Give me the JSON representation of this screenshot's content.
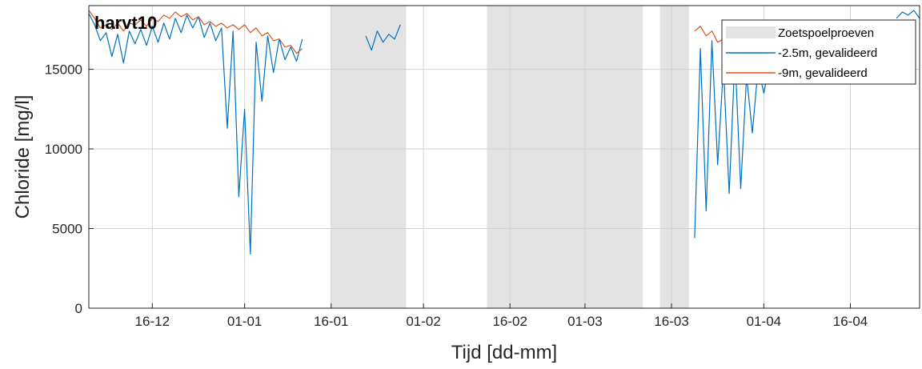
{
  "chart_data": {
    "type": "line",
    "title": "harvt10",
    "xlabel": "Tijd [dd-mm]",
    "ylabel": "Chloride [mg/l]",
    "ylim": [
      0,
      19000
    ],
    "xlim": [
      "2017-12-05",
      "2018-04-28"
    ],
    "grid": true,
    "legend_placement": "top-right",
    "x_ticks": [
      {
        "date": "2017-12-16",
        "label": "16-12"
      },
      {
        "date": "2018-01-01",
        "label": "01-01"
      },
      {
        "date": "2018-01-16",
        "label": "16-01"
      },
      {
        "date": "2018-02-01",
        "label": "01-02"
      },
      {
        "date": "2018-02-16",
        "label": "16-02"
      },
      {
        "date": "2018-03-01",
        "label": "01-03"
      },
      {
        "date": "2018-03-16",
        "label": "16-03"
      },
      {
        "date": "2018-04-01",
        "label": "01-04"
      },
      {
        "date": "2018-04-16",
        "label": "16-04"
      }
    ],
    "y_ticks": [
      {
        "value": 0,
        "label": "0"
      },
      {
        "value": 5000,
        "label": "5000"
      },
      {
        "value": 10000,
        "label": "10000"
      },
      {
        "value": 15000,
        "label": "15000"
      }
    ],
    "shaded_periods": {
      "name": "Zoetspoelproeven",
      "color": "#e3e3e3",
      "ranges": [
        [
          "2018-01-16",
          "2018-01-29"
        ],
        [
          "2018-02-12",
          "2018-03-11"
        ],
        [
          "2018-03-14",
          "2018-03-19"
        ]
      ]
    },
    "series": [
      {
        "name": "-2.5m, gevalideerd",
        "color": "#0072BD",
        "segments": [
          [
            [
              "2017-12-05",
              18500
            ],
            [
              "2017-12-06",
              17800
            ],
            [
              "2017-12-07",
              16800
            ],
            [
              "2017-12-08",
              17300
            ],
            [
              "2017-12-09",
              15800
            ],
            [
              "2017-12-10",
              17200
            ],
            [
              "2017-12-11",
              15400
            ],
            [
              "2017-12-12",
              17400
            ],
            [
              "2017-12-13",
              16600
            ],
            [
              "2017-12-14",
              17500
            ],
            [
              "2017-12-15",
              16500
            ],
            [
              "2017-12-16",
              17700
            ],
            [
              "2017-12-17",
              16700
            ],
            [
              "2017-12-18",
              17900
            ],
            [
              "2017-12-19",
              16900
            ],
            [
              "2017-12-20",
              18200
            ],
            [
              "2017-12-21",
              17300
            ],
            [
              "2017-12-22",
              18400
            ],
            [
              "2017-12-23",
              17600
            ],
            [
              "2017-12-24",
              18300
            ],
            [
              "2017-12-25",
              17000
            ],
            [
              "2017-12-26",
              17900
            ],
            [
              "2017-12-27",
              16800
            ],
            [
              "2017-12-28",
              17600
            ],
            [
              "2017-12-29",
              11300
            ],
            [
              "2017-12-30",
              17400
            ],
            [
              "2017-12-31",
              7000
            ],
            [
              "2018-01-01",
              12500
            ],
            [
              "2018-01-02",
              3400
            ],
            [
              "2018-01-03",
              16700
            ],
            [
              "2018-01-04",
              13000
            ],
            [
              "2018-01-05",
              17100
            ],
            [
              "2018-01-06",
              14800
            ],
            [
              "2018-01-07",
              16900
            ],
            [
              "2018-01-08",
              15600
            ],
            [
              "2018-01-09",
              16400
            ],
            [
              "2018-01-10",
              15500
            ],
            [
              "2018-01-11",
              16900
            ]
          ],
          [
            [
              "2018-01-22",
              17100
            ],
            [
              "2018-01-23",
              16200
            ],
            [
              "2018-01-24",
              17400
            ],
            [
              "2018-01-25",
              16700
            ],
            [
              "2018-01-26",
              17200
            ],
            [
              "2018-01-27",
              16900
            ],
            [
              "2018-01-28",
              17800
            ]
          ],
          [
            [
              "2018-03-20",
              4400
            ],
            [
              "2018-03-21",
              16300
            ],
            [
              "2018-03-22",
              6100
            ],
            [
              "2018-03-23",
              16800
            ],
            [
              "2018-03-24",
              9000
            ],
            [
              "2018-03-25",
              15200
            ],
            [
              "2018-03-26",
              7200
            ],
            [
              "2018-03-27",
              15900
            ],
            [
              "2018-03-28",
              7500
            ],
            [
              "2018-03-29",
              14600
            ],
            [
              "2018-03-30",
              11000
            ],
            [
              "2018-03-31",
              15100
            ],
            [
              "2018-04-01",
              13500
            ],
            [
              "2018-04-02",
              15400
            ],
            [
              "2018-04-03",
              14400
            ]
          ],
          [
            [
              "2018-04-24",
              18200
            ],
            [
              "2018-04-25",
              18600
            ],
            [
              "2018-04-26",
              18400
            ],
            [
              "2018-04-27",
              18700
            ],
            [
              "2018-04-28",
              18200
            ]
          ]
        ]
      },
      {
        "name": "-9m, gevalideerd",
        "color": "#D95319",
        "segments": [
          [
            [
              "2017-12-05",
              18700
            ],
            [
              "2017-12-06",
              18200
            ],
            [
              "2017-12-07",
              17600
            ],
            [
              "2017-12-08",
              17800
            ],
            [
              "2017-12-09",
              17500
            ],
            [
              "2017-12-10",
              17900
            ],
            [
              "2017-12-11",
              17400
            ],
            [
              "2017-12-12",
              17900
            ],
            [
              "2017-12-13",
              17800
            ],
            [
              "2017-12-14",
              18100
            ],
            [
              "2017-12-15",
              17700
            ],
            [
              "2017-12-16",
              18200
            ],
            [
              "2017-12-17",
              18000
            ],
            [
              "2017-12-18",
              18400
            ],
            [
              "2017-12-19",
              18200
            ],
            [
              "2017-12-20",
              18600
            ],
            [
              "2017-12-21",
              18300
            ],
            [
              "2017-12-22",
              18500
            ],
            [
              "2017-12-23",
              18100
            ],
            [
              "2017-12-24",
              18300
            ],
            [
              "2017-12-25",
              17800
            ],
            [
              "2017-12-26",
              18000
            ],
            [
              "2017-12-27",
              17700
            ],
            [
              "2017-12-28",
              17900
            ],
            [
              "2017-12-29",
              17600
            ],
            [
              "2017-12-30",
              17800
            ],
            [
              "2017-12-31",
              17500
            ],
            [
              "2018-01-01",
              17800
            ],
            [
              "2018-01-02",
              17300
            ],
            [
              "2018-01-03",
              17600
            ],
            [
              "2018-01-04",
              17100
            ],
            [
              "2018-01-05",
              17300
            ],
            [
              "2018-01-06",
              16800
            ],
            [
              "2018-01-07",
              16900
            ],
            [
              "2018-01-08",
              16400
            ],
            [
              "2018-01-09",
              16500
            ],
            [
              "2018-01-10",
              16000
            ],
            [
              "2018-01-11",
              16300
            ]
          ],
          [
            [
              "2018-03-20",
              17400
            ],
            [
              "2018-03-21",
              17700
            ],
            [
              "2018-03-22",
              17100
            ],
            [
              "2018-03-23",
              17400
            ],
            [
              "2018-03-24",
              16700
            ],
            [
              "2018-03-25",
              16900
            ],
            [
              "2018-03-26",
              16300
            ],
            [
              "2018-03-27",
              16500
            ],
            [
              "2018-03-28",
              16000
            ],
            [
              "2018-03-29",
              16200
            ],
            [
              "2018-03-30",
              15800
            ]
          ]
        ]
      }
    ]
  }
}
